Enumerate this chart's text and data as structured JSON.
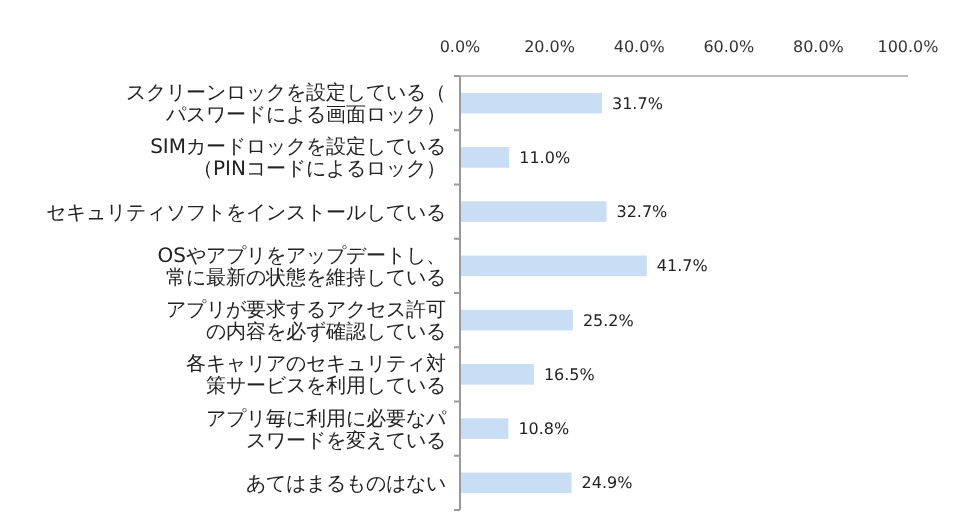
{
  "chart_data": {
    "type": "bar",
    "orientation": "horizontal",
    "categories": [
      "スクリーンロックを設定している（パスワードによる画面ロック）",
      "SIMカードロックを設定している（PINコードによるロック）",
      "セキュリティソフトをインストールしている",
      "OSやアプリをアップデートし、常に最新の状態を維持している",
      "アプリが要求するアクセス許可の内容を必ず確認している",
      "各キャリアのセキュリティ対策サービスを利用している",
      "アプリ毎に利用に必要なパスワードを変えている",
      "あてはまるものはない"
    ],
    "values": [
      31.7,
      11.0,
      32.7,
      41.7,
      25.2,
      16.5,
      10.8,
      24.9
    ],
    "value_labels": [
      "31.7%",
      "11.0%",
      "32.7%",
      "41.7%",
      "25.2%",
      "16.5%",
      "10.8%",
      "24.9%"
    ],
    "color": "#c9ddf5",
    "xlim": [
      0,
      100
    ],
    "xticks": [
      {
        "value": 0,
        "label": "0.0%"
      },
      {
        "value": 20,
        "label": "20.0%"
      },
      {
        "value": 40,
        "label": "40.0%"
      },
      {
        "value": 60,
        "label": "60.0%"
      },
      {
        "value": 80,
        "label": "80.0%"
      },
      {
        "value": 100,
        "label": "100.0%"
      }
    ],
    "grid": false
  }
}
